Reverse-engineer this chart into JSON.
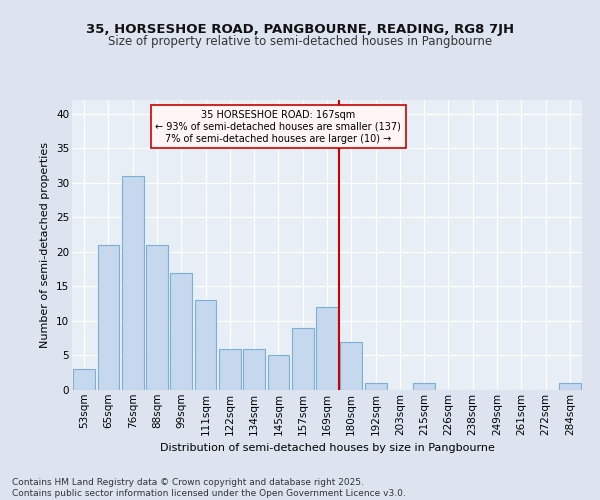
{
  "title1": "35, HORSESHOE ROAD, PANGBOURNE, READING, RG8 7JH",
  "title2": "Size of property relative to semi-detached houses in Pangbourne",
  "xlabel": "Distribution of semi-detached houses by size in Pangbourne",
  "ylabel": "Number of semi-detached properties",
  "categories": [
    "53sqm",
    "65sqm",
    "76sqm",
    "88sqm",
    "99sqm",
    "111sqm",
    "122sqm",
    "134sqm",
    "145sqm",
    "157sqm",
    "169sqm",
    "180sqm",
    "192sqm",
    "203sqm",
    "215sqm",
    "226sqm",
    "238sqm",
    "249sqm",
    "261sqm",
    "272sqm",
    "284sqm"
  ],
  "values": [
    3,
    21,
    31,
    21,
    17,
    13,
    6,
    6,
    5,
    9,
    12,
    7,
    1,
    0,
    1,
    0,
    0,
    0,
    0,
    0,
    1
  ],
  "bar_color": "#c5d8ed",
  "bar_edge_color": "#7bafd4",
  "highlight_index": 10,
  "highlight_line_color": "#cc0000",
  "annotation_text": "35 HORSESHOE ROAD: 167sqm\n← 93% of semi-detached houses are smaller (137)\n7% of semi-detached houses are larger (10) →",
  "annotation_box_facecolor": "#fff5f5",
  "annotation_box_edge": "#cc0000",
  "ylim": [
    0,
    42
  ],
  "yticks": [
    0,
    5,
    10,
    15,
    20,
    25,
    30,
    35,
    40
  ],
  "footer": "Contains HM Land Registry data © Crown copyright and database right 2025.\nContains public sector information licensed under the Open Government Licence v3.0.",
  "bg_color": "#dde4f0",
  "plot_bg_color": "#e8eef6",
  "grid_color": "#ffffff",
  "title1_fontsize": 9.5,
  "title2_fontsize": 8.5,
  "xlabel_fontsize": 8,
  "ylabel_fontsize": 8,
  "tick_fontsize": 7.5,
  "footer_fontsize": 6.5
}
